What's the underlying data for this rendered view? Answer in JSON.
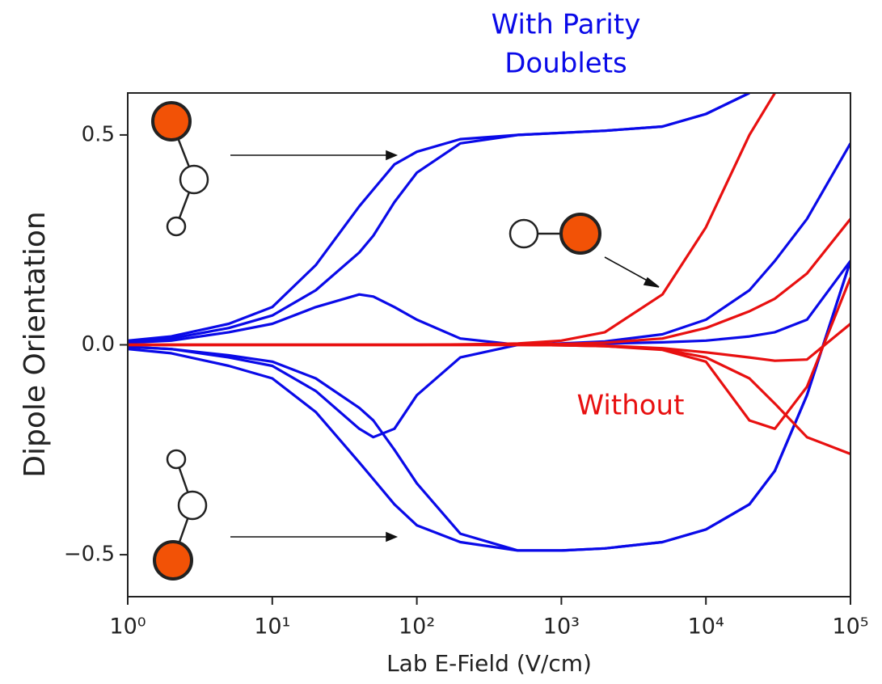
{
  "chart_data": {
    "type": "line",
    "x_label": "Lab E-Field (V/cm)",
    "y_label": "Dipole Orientation",
    "annotations": [
      {
        "text": "With Parity",
        "color": "#0a0ae8"
      },
      {
        "text": "Doublets",
        "color": "#0a0ae8"
      },
      {
        "text": "Without",
        "color": "#e81010"
      }
    ],
    "x_log": true,
    "x": [
      1,
      2,
      5,
      10,
      20,
      40,
      50,
      70,
      100,
      200,
      500,
      1000,
      2000,
      5000,
      10000,
      20000,
      30000,
      50000,
      100000
    ],
    "series": [
      {
        "color": "#0a0ae8",
        "values": [
          0.01,
          0.02,
          0.05,
          0.09,
          0.19,
          0.33,
          0.37,
          0.43,
          0.46,
          0.49,
          0.5,
          0.505,
          0.51,
          0.52,
          0.55,
          0.6,
          null,
          null,
          null
        ]
      },
      {
        "color": "#0a0ae8",
        "values": [
          0.005,
          0.015,
          0.04,
          0.07,
          0.13,
          0.22,
          0.26,
          0.34,
          0.41,
          0.48,
          0.5,
          0.505,
          0.51,
          0.52,
          0.55,
          0.6,
          null,
          null,
          null
        ]
      },
      {
        "color": "#0a0ae8",
        "values": [
          0.005,
          0.01,
          0.03,
          0.05,
          0.09,
          0.12,
          0.115,
          0.09,
          0.06,
          0.015,
          0.0,
          0.003,
          0.008,
          0.025,
          0.06,
          0.13,
          0.2,
          0.3,
          0.48
        ]
      },
      {
        "color": "#0a0ae8",
        "values": [
          -0.005,
          -0.01,
          -0.03,
          -0.05,
          -0.11,
          -0.2,
          -0.22,
          -0.2,
          -0.12,
          -0.03,
          0.0,
          0.001,
          0.003,
          0.006,
          0.01,
          0.02,
          0.03,
          0.06,
          0.2
        ]
      },
      {
        "color": "#0a0ae8",
        "values": [
          -0.01,
          -0.02,
          -0.05,
          -0.08,
          -0.16,
          -0.28,
          -0.32,
          -0.38,
          -0.43,
          -0.47,
          -0.49,
          -0.49,
          -0.485,
          -0.47,
          -0.44,
          -0.38,
          -0.3,
          -0.12,
          0.2
        ]
      },
      {
        "color": "#0a0ae8",
        "values": [
          -0.005,
          -0.01,
          -0.025,
          -0.04,
          -0.08,
          -0.15,
          -0.18,
          -0.25,
          -0.33,
          -0.45,
          -0.49,
          -0.49,
          -0.485,
          -0.47,
          -0.44,
          -0.38,
          -0.3,
          -0.12,
          0.2
        ]
      },
      {
        "color": "#e81010",
        "values": [
          0,
          0,
          0,
          0,
          0,
          0,
          0,
          0,
          0,
          0.001,
          0.003,
          0.01,
          0.03,
          0.12,
          0.28,
          0.5,
          0.6,
          null,
          null
        ]
      },
      {
        "color": "#e81010",
        "values": [
          0,
          0,
          0,
          0,
          0,
          0,
          0,
          0,
          0,
          0,
          0.001,
          0.002,
          0.005,
          0.015,
          0.04,
          0.08,
          0.11,
          0.17,
          0.3
        ]
      },
      {
        "color": "#e81010",
        "values": [
          0,
          0,
          0,
          0,
          0,
          0,
          0,
          0,
          0,
          0,
          0,
          -0.001,
          -0.002,
          -0.008,
          -0.018,
          -0.03,
          -0.038,
          -0.035,
          0.05
        ]
      },
      {
        "color": "#e81010",
        "values": [
          0,
          0,
          0,
          0,
          0,
          0,
          0,
          0,
          0,
          0,
          0,
          -0.001,
          -0.003,
          -0.012,
          -0.04,
          -0.18,
          -0.2,
          -0.1,
          0.16
        ]
      },
      {
        "color": "#e81010",
        "values": [
          0,
          0,
          0,
          0,
          0,
          0,
          0,
          0,
          0,
          0,
          0,
          -0.001,
          -0.003,
          -0.01,
          -0.03,
          -0.08,
          -0.14,
          -0.22,
          -0.26
        ]
      }
    ],
    "xlim": [
      1,
      100000
    ],
    "xticks": [
      {
        "value": 1,
        "label": "10⁰"
      },
      {
        "value": 10,
        "label": "10¹"
      },
      {
        "value": 100,
        "label": "10²"
      },
      {
        "value": 1000,
        "label": "10³"
      },
      {
        "value": 10000,
        "label": "10⁴"
      },
      {
        "value": 100000,
        "label": "10⁵"
      }
    ],
    "ylim": [
      -0.6,
      0.6
    ],
    "yticks": [
      {
        "value": -0.5,
        "label": "−0.5"
      },
      {
        "value": 0,
        "label": "0.0"
      },
      0.5
    ]
  }
}
